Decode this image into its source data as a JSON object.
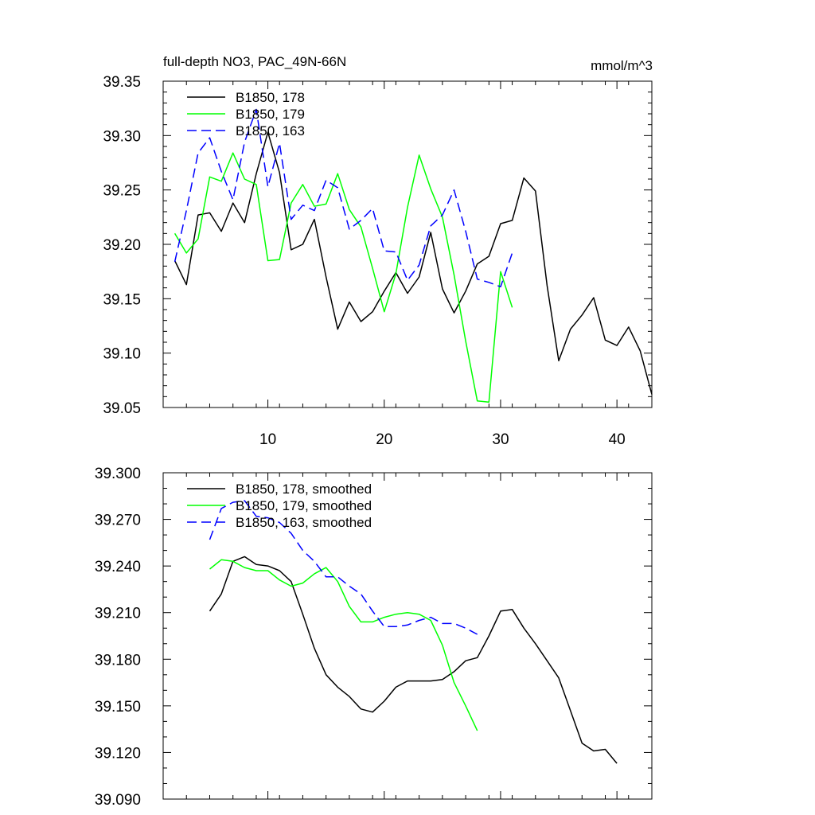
{
  "chart_data": [
    {
      "type": "line",
      "title": "full-depth NO3, PAC_49N-66N",
      "units": "mmol/m^3",
      "xlabel": "",
      "ylabel": "",
      "xlim": [
        1,
        43
      ],
      "ylim": [
        39.05,
        39.35
      ],
      "xticks": [
        10,
        20,
        30,
        40
      ],
      "yticks": [
        39.05,
        39.1,
        39.15,
        39.2,
        39.25,
        39.3,
        39.35
      ],
      "ytick_labels": [
        "39.05",
        "39.10",
        "39.15",
        "39.20",
        "39.25",
        "39.30",
        "39.35"
      ],
      "legend_position": "top-left",
      "series": [
        {
          "name": "B1850, 178",
          "color": "#000000",
          "dash": "solid",
          "x_start": 2,
          "values": [
            39.185,
            39.163,
            39.227,
            39.229,
            39.212,
            39.238,
            39.22,
            39.265,
            39.303,
            39.266,
            39.195,
            39.2,
            39.223,
            39.17,
            39.122,
            39.147,
            39.129,
            39.138,
            39.157,
            39.174,
            39.155,
            39.17,
            39.211,
            39.159,
            39.137,
            39.157,
            39.182,
            39.189,
            39.219,
            39.222,
            39.261,
            39.249,
            39.162,
            39.093,
            39.122,
            39.135,
            39.151,
            39.112,
            39.107,
            39.124,
            39.102,
            39.062
          ]
        },
        {
          "name": "B1850, 179",
          "color": "#00ff00",
          "dash": "solid",
          "x_start": 2,
          "values": [
            39.21,
            39.192,
            39.205,
            39.262,
            39.258,
            39.284,
            39.26,
            39.255,
            39.185,
            39.186,
            39.238,
            39.255,
            39.235,
            39.237,
            39.265,
            39.232,
            39.216,
            39.178,
            39.138,
            39.173,
            39.234,
            39.282,
            39.251,
            39.225,
            39.172,
            39.111,
            39.056,
            39.055,
            39.175,
            39.142
          ]
        },
        {
          "name": "B1850, 163",
          "color": "#0000ff",
          "dash": "dashed",
          "x_start": 2,
          "values": [
            39.184,
            39.231,
            39.284,
            39.298,
            39.267,
            39.241,
            39.294,
            39.324,
            39.253,
            39.293,
            39.223,
            39.236,
            39.231,
            39.259,
            39.252,
            39.214,
            39.222,
            39.233,
            39.194,
            39.193,
            39.167,
            39.181,
            39.217,
            39.227,
            39.25,
            39.212,
            39.168,
            39.165,
            39.161,
            39.192
          ]
        }
      ]
    },
    {
      "type": "line",
      "title": "",
      "units": "",
      "xlabel": "",
      "ylabel": "",
      "xlim": [
        1,
        43
      ],
      "ylim": [
        39.09,
        39.3
      ],
      "xticks": [
        10,
        20,
        30,
        40
      ],
      "yticks": [
        39.09,
        39.12,
        39.15,
        39.18,
        39.21,
        39.24,
        39.27,
        39.3
      ],
      "ytick_labels": [
        "39.090",
        "39.120",
        "39.150",
        "39.180",
        "39.210",
        "39.240",
        "39.270",
        "39.300"
      ],
      "legend_position": "top-left",
      "series": [
        {
          "name": "B1850, 178, smoothed",
          "color": "#000000",
          "dash": "solid",
          "x_start": 5,
          "values": [
            39.211,
            39.222,
            39.243,
            39.246,
            39.241,
            39.24,
            39.237,
            39.23,
            39.209,
            39.187,
            39.17,
            39.162,
            39.156,
            39.148,
            39.146,
            39.153,
            39.162,
            39.166,
            39.166,
            39.166,
            39.167,
            39.172,
            39.179,
            39.181,
            39.195,
            39.211,
            39.212,
            39.2,
            39.19,
            39.179,
            39.168,
            39.147,
            39.126,
            39.121,
            39.122,
            39.113
          ]
        },
        {
          "name": "B1850, 179, smoothed",
          "color": "#00ff00",
          "dash": "solid",
          "x_start": 5,
          "values": [
            39.238,
            39.244,
            39.243,
            39.239,
            39.237,
            39.237,
            39.231,
            39.227,
            39.229,
            39.235,
            39.239,
            39.23,
            39.214,
            39.204,
            39.204,
            39.207,
            39.209,
            39.21,
            39.209,
            39.205,
            39.189,
            39.165,
            39.15,
            39.134
          ]
        },
        {
          "name": "B1850, 163, smoothed",
          "color": "#0000ff",
          "dash": "dashed",
          "x_start": 5,
          "values": [
            39.257,
            39.277,
            39.281,
            39.282,
            39.272,
            39.271,
            39.268,
            39.261,
            39.25,
            39.243,
            39.233,
            39.233,
            39.227,
            39.222,
            39.211,
            39.201,
            39.201,
            39.202,
            39.205,
            39.207,
            39.203,
            39.203,
            39.2,
            39.196
          ]
        }
      ]
    }
  ]
}
